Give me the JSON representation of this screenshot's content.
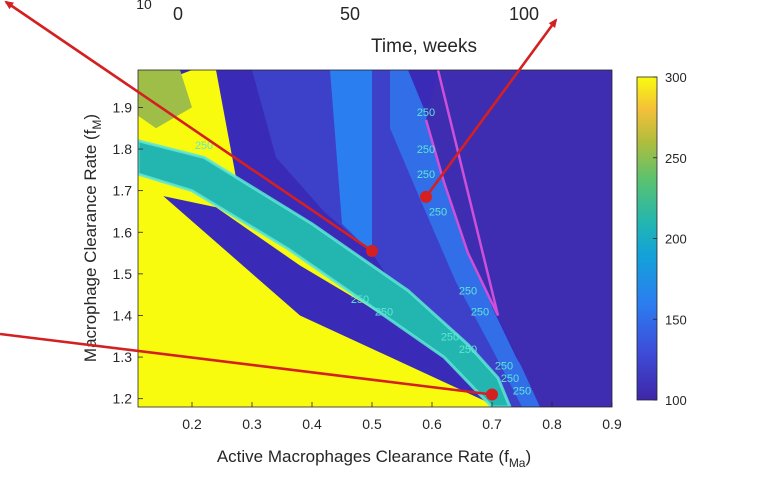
{
  "colors": {
    "arrow": "#d42020",
    "contour": "#5ee6d6",
    "boundary": "#d04fd8",
    "axis": "#262626"
  },
  "top_axis": {
    "tick_labels": [
      "0",
      "50",
      "100"
    ],
    "partial_label": "10",
    "xlabel": "Time, weeks"
  },
  "chart_data": {
    "type": "heatmap",
    "title": "",
    "xlabel": "Active Macrophages Clearance Rate (f",
    "xlabel_sub": "Ma",
    "xlabel_end": ")",
    "ylabel": "Macrophage Clearance Rate (f",
    "ylabel_sub": "M",
    "ylabel_end": ")",
    "xlim": [
      0.11,
      0.9
    ],
    "ylim": [
      1.18,
      1.99
    ],
    "xticks": [
      0.2,
      0.3,
      0.4,
      0.5,
      0.6,
      0.7,
      0.8,
      0.9
    ],
    "xtick_labels": [
      "0.2",
      "0.3",
      "0.4",
      "0.5",
      "0.6",
      "0.7",
      "0.8",
      "0.9"
    ],
    "yticks": [
      1.2,
      1.3,
      1.4,
      1.5,
      1.6,
      1.7,
      1.8,
      1.9
    ],
    "ytick_labels": [
      "1.2",
      "1.3",
      "1.4",
      "1.5",
      "1.6",
      "1.7",
      "1.8",
      "1.9"
    ],
    "colorbar": {
      "range": [
        100,
        300
      ],
      "ticks": [
        100,
        150,
        200,
        250,
        300
      ],
      "tick_labels": [
        "100",
        "150",
        "200",
        "250",
        "300"
      ],
      "colormap": "parula"
    },
    "regions": [
      {
        "value": 300,
        "polygon": [
          [
            0.11,
            1.18
          ],
          [
            0.71,
            1.18
          ],
          [
            0.38,
            1.4
          ],
          [
            0.11,
            1.74
          ]
        ]
      },
      {
        "value": 300,
        "polygon": [
          [
            0.11,
            1.94
          ],
          [
            0.2,
            1.99
          ],
          [
            0.24,
            1.99
          ],
          [
            0.28,
            1.68
          ],
          [
            0.48,
            1.5
          ],
          [
            0.52,
            1.4
          ],
          [
            0.38,
            1.52
          ],
          [
            0.24,
            1.66
          ],
          [
            0.11,
            1.7
          ]
        ]
      },
      {
        "value": 120,
        "polygon": [
          [
            0.3,
            1.99
          ],
          [
            0.54,
            1.99
          ],
          [
            0.56,
            1.78
          ],
          [
            0.62,
            1.58
          ],
          [
            0.7,
            1.35
          ],
          [
            0.76,
            1.18
          ],
          [
            0.7,
            1.18
          ],
          [
            0.62,
            1.3
          ],
          [
            0.56,
            1.42
          ],
          [
            0.5,
            1.55
          ],
          [
            0.42,
            1.65
          ],
          [
            0.34,
            1.78
          ]
        ]
      },
      {
        "value": 160,
        "polygon": [
          [
            0.43,
            1.99
          ],
          [
            0.5,
            1.99
          ],
          [
            0.5,
            1.55
          ],
          [
            0.45,
            1.62
          ]
        ]
      },
      {
        "value": 150,
        "polygon": [
          [
            0.56,
            1.99
          ],
          [
            0.62,
            1.78
          ],
          [
            0.66,
            1.58
          ],
          [
            0.7,
            1.42
          ],
          [
            0.74,
            1.3
          ],
          [
            0.79,
            1.18
          ],
          [
            0.75,
            1.18
          ],
          [
            0.7,
            1.32
          ],
          [
            0.64,
            1.48
          ],
          [
            0.58,
            1.68
          ],
          [
            0.53,
            1.85
          ],
          [
            0.53,
            1.99
          ]
        ]
      },
      {
        "value": 105,
        "polygon": [
          [
            0.61,
            1.99
          ],
          [
            0.9,
            1.99
          ],
          [
            0.9,
            1.18
          ],
          [
            0.78,
            1.18
          ],
          [
            0.71,
            1.4
          ],
          [
            0.66,
            1.55
          ],
          [
            0.62,
            1.72
          ],
          [
            0.59,
            1.87
          ]
        ]
      },
      {
        "value": 210,
        "polygon": [
          [
            0.11,
            1.82
          ],
          [
            0.22,
            1.78
          ],
          [
            0.4,
            1.62
          ],
          [
            0.56,
            1.46
          ],
          [
            0.66,
            1.33
          ],
          [
            0.71,
            1.25
          ],
          [
            0.73,
            1.18
          ],
          [
            0.7,
            1.18
          ],
          [
            0.62,
            1.3
          ],
          [
            0.5,
            1.42
          ],
          [
            0.36,
            1.56
          ],
          [
            0.2,
            1.7
          ],
          [
            0.11,
            1.74
          ]
        ]
      },
      {
        "value": 255,
        "polygon": [
          [
            0.11,
            1.99
          ],
          [
            0.18,
            1.99
          ],
          [
            0.2,
            1.9
          ],
          [
            0.14,
            1.85
          ],
          [
            0.11,
            1.88
          ]
        ]
      }
    ],
    "contour_labels": [
      {
        "text": "250",
        "x": 0.22,
        "y": 1.8
      },
      {
        "text": "250",
        "x": 0.59,
        "y": 1.88
      },
      {
        "text": "250",
        "x": 0.59,
        "y": 1.79
      },
      {
        "text": "250",
        "x": 0.59,
        "y": 1.73
      },
      {
        "text": "250",
        "x": 0.61,
        "y": 1.64
      },
      {
        "text": "250",
        "x": 0.48,
        "y": 1.43
      },
      {
        "text": "250",
        "x": 0.52,
        "y": 1.4
      },
      {
        "text": "250",
        "x": 0.66,
        "y": 1.45
      },
      {
        "text": "250",
        "x": 0.68,
        "y": 1.4
      },
      {
        "text": "250",
        "x": 0.63,
        "y": 1.34
      },
      {
        "text": "250",
        "x": 0.66,
        "y": 1.31
      },
      {
        "text": "250",
        "x": 0.72,
        "y": 1.27
      },
      {
        "text": "250",
        "x": 0.73,
        "y": 1.24
      },
      {
        "text": "250",
        "x": 0.75,
        "y": 1.21
      }
    ],
    "markers": [
      {
        "x": 0.5,
        "y": 1.555
      },
      {
        "x": 0.59,
        "y": 1.685
      },
      {
        "x": 0.7,
        "y": 1.21
      }
    ],
    "arrows": [
      {
        "from": [
          0.5,
          1.555
        ],
        "to_page": "top-left"
      },
      {
        "from": [
          0.59,
          1.685
        ],
        "to_page": "top-right"
      },
      {
        "from": [
          0.7,
          1.21
        ],
        "to_page": "left"
      }
    ]
  }
}
